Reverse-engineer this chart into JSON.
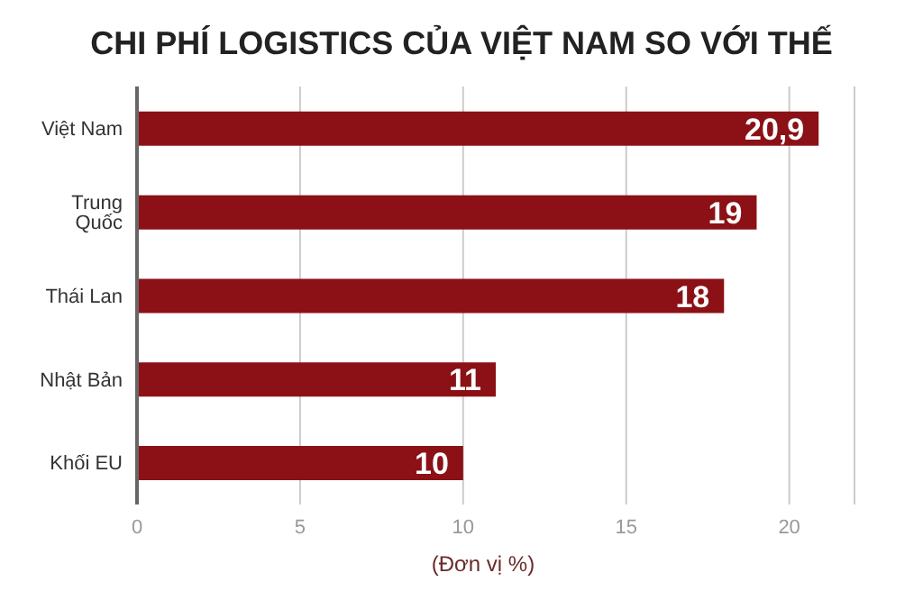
{
  "chart_data": {
    "type": "bar",
    "orientation": "horizontal",
    "title": "CHI PHÍ LOGISTICS CỦA VIỆT NAM SO VỚI THẾ",
    "xlabel": "(Đơn vị %)",
    "categories": [
      "Việt Nam",
      "Trung Quốc",
      "Thái Lan",
      "Nhật Bản",
      "Khối EU"
    ],
    "values": [
      20.9,
      19,
      18,
      11,
      10
    ],
    "value_labels": [
      "20,9",
      "19",
      "18",
      "11",
      "10"
    ],
    "color": "#8b1116",
    "xlim": [
      0,
      22
    ],
    "xticks": [
      0,
      5,
      10,
      15,
      20
    ],
    "grid": "x"
  }
}
